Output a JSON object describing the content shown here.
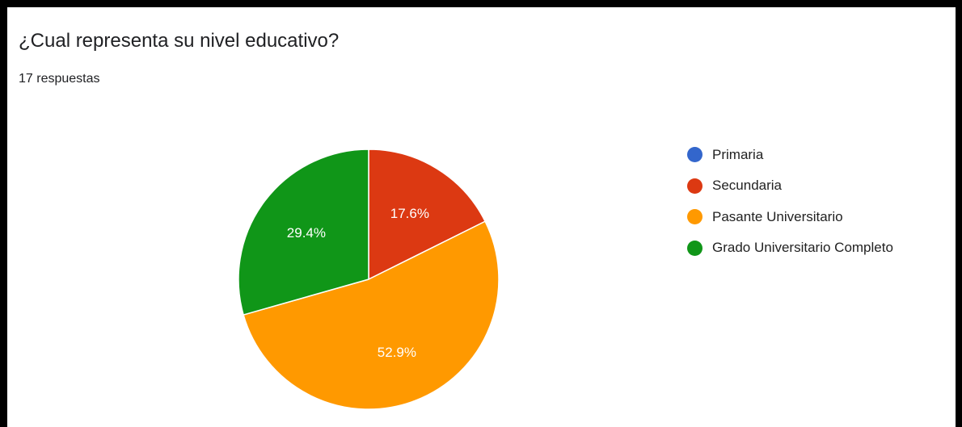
{
  "header": {
    "title": "¿Cual representa su nivel educativo?",
    "responses": "17 respuestas"
  },
  "chart_data": {
    "type": "pie",
    "total": 17,
    "slices": [
      {
        "name": "Primaria",
        "value": 0,
        "percent": 0,
        "label": "",
        "color": "#3366cc"
      },
      {
        "name": "Secundaria",
        "value": 3,
        "percent": 17.6,
        "label": "17.6%",
        "color": "#dc3912"
      },
      {
        "name": "Pasante Universitario",
        "value": 9,
        "percent": 52.9,
        "label": "52.9%",
        "color": "#ff9900"
      },
      {
        "name": "Grado Universitario Completo",
        "value": 5,
        "percent": 29.4,
        "label": "29.4%",
        "color": "#109618"
      }
    ],
    "start_angle": "12 o'clock",
    "direction": "clockwise",
    "legend": "right"
  }
}
